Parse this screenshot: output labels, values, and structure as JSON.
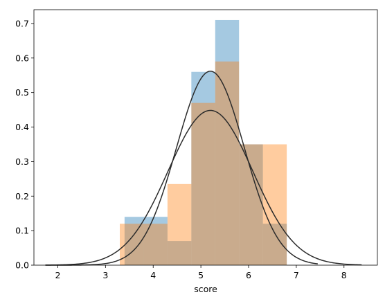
{
  "chart_data": {
    "type": "histogram",
    "title": "",
    "xlabel": "score",
    "ylabel": "",
    "xlim": [
      1.5,
      8.7
    ],
    "ylim": [
      0,
      0.74
    ],
    "xticks": [
      2,
      3,
      4,
      5,
      6,
      7,
      8
    ],
    "yticks": [
      0.0,
      0.1,
      0.2,
      0.3,
      0.4,
      0.5,
      0.6,
      0.7
    ],
    "grid": false,
    "legend": false,
    "series": [
      {
        "color": "#1f77b4",
        "opacity": 0.4,
        "bins": [
          {
            "x0": 3.4,
            "x1": 3.8,
            "height": 0.14
          },
          {
            "x0": 3.8,
            "x1": 4.3,
            "height": 0.14
          },
          {
            "x0": 4.3,
            "x1": 4.8,
            "height": 0.07
          },
          {
            "x0": 4.8,
            "x1": 5.3,
            "height": 0.56
          },
          {
            "x0": 5.3,
            "x1": 5.8,
            "height": 0.71
          },
          {
            "x0": 5.8,
            "x1": 6.3,
            "height": 0.35
          },
          {
            "x0": 6.3,
            "x1": 6.8,
            "height": 0.12
          }
        ],
        "kde": {
          "mean": 5.2,
          "sd": 0.71,
          "x_range": [
            1.74,
            7.45
          ]
        }
      },
      {
        "color": "#ff7f0e",
        "opacity": 0.4,
        "bins": [
          {
            "x0": 3.3,
            "x1": 3.8,
            "height": 0.12
          },
          {
            "x0": 3.8,
            "x1": 4.3,
            "height": 0.12
          },
          {
            "x0": 4.3,
            "x1": 4.8,
            "height": 0.235
          },
          {
            "x0": 4.8,
            "x1": 5.3,
            "height": 0.47
          },
          {
            "x0": 5.3,
            "x1": 5.8,
            "height": 0.59
          },
          {
            "x0": 5.8,
            "x1": 6.3,
            "height": 0.35
          },
          {
            "x0": 6.3,
            "x1": 6.8,
            "height": 0.35
          }
        ],
        "kde": {
          "mean": 5.2,
          "sd": 0.89,
          "x_range": [
            1.74,
            8.37
          ]
        }
      }
    ]
  }
}
